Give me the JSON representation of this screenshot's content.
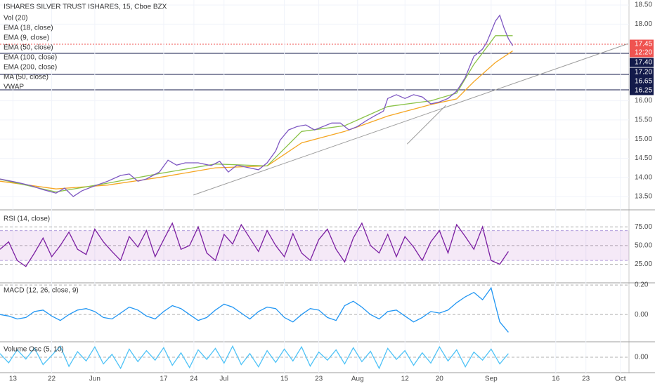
{
  "chart_data": [
    {
      "type": "line",
      "title": "ISHARES SILVER TRUST ISHARES, 15, Cboe BZX",
      "indicators": [
        "Vol (20)",
        "EMA (18, close)",
        "EMA (9, close)",
        "EMA (50, close)",
        "EMA (100, close)",
        "EMA (200, close)",
        "MA (50, close)",
        "VWAP"
      ],
      "xlim": [
        10,
        156
      ],
      "xticks": [
        {
          "value": 13,
          "label": "13"
        },
        {
          "value": 22,
          "label": "22"
        },
        {
          "value": 32,
          "label": "Jun"
        },
        {
          "value": 48,
          "label": "17"
        },
        {
          "value": 55,
          "label": "24"
        },
        {
          "value": 62,
          "label": "Jul"
        },
        {
          "value": 76,
          "label": "15"
        },
        {
          "value": 84,
          "label": "23"
        },
        {
          "value": 93,
          "label": "Aug"
        },
        {
          "value": 104,
          "label": "12"
        },
        {
          "value": 112,
          "label": "20"
        },
        {
          "value": 124,
          "label": "Sep"
        },
        {
          "value": 139,
          "label": "16"
        },
        {
          "value": 146,
          "label": "23"
        },
        {
          "value": 154,
          "label": "Oct"
        }
      ],
      "ylim": [
        13.19,
        18.63
      ],
      "yticks": [
        {
          "value": 18.5,
          "label": "18.50"
        },
        {
          "value": 18,
          "label": "18.00"
        },
        {
          "value": 16,
          "label": "16.00"
        },
        {
          "value": 15.5,
          "label": "15.50"
        },
        {
          "value": 15,
          "label": "15.00"
        },
        {
          "value": 14.5,
          "label": "14.50"
        },
        {
          "value": 14,
          "label": "14.00"
        },
        {
          "value": 13.5,
          "label": "13.50"
        }
      ],
      "price_labels": [
        {
          "text": "17.45",
          "color": "#ef5350"
        },
        {
          "text": "12:20",
          "color": "#ef5350"
        },
        {
          "text": "17.40",
          "color": "#131a4a"
        },
        {
          "text": "17.20",
          "color": "#131a4a"
        },
        {
          "text": "16.65",
          "color": "#131a4a"
        },
        {
          "text": "16.25",
          "color": "#131a4a"
        }
      ],
      "trendlines": [
        {
          "x": [
            54.9,
            155.8
          ],
          "values": [
            13.54,
            17.49
          ]
        },
        {
          "x": [
            104.5,
            113.5
          ],
          "values": [
            14.87,
            15.88
          ]
        }
      ],
      "series": [
        {
          "color": "#f5a623",
          "x": [
            10,
            23,
            35,
            47,
            60,
            72,
            80,
            90,
            100,
            110,
            116,
            120,
            125,
            129
          ],
          "values": [
            13.9,
            13.7,
            13.8,
            14.0,
            14.25,
            14.3,
            14.9,
            15.2,
            15.6,
            15.9,
            16.05,
            16.5,
            17.0,
            17.3
          ]
        },
        {
          "color": "#8bc34a",
          "x": [
            10,
            23,
            35,
            47,
            60,
            72,
            80,
            90,
            100,
            110,
            116,
            120,
            125,
            129
          ],
          "values": [
            13.95,
            13.62,
            13.85,
            14.1,
            14.35,
            14.3,
            15.2,
            15.35,
            15.85,
            16.0,
            16.2,
            16.95,
            17.7,
            17.7
          ]
        },
        {
          "color": "#7e57c2",
          "x": [
            10,
            14,
            17,
            20,
            23,
            25,
            27,
            29,
            32,
            35,
            38,
            40,
            42,
            44,
            47,
            49,
            51,
            53,
            56,
            59,
            61,
            63,
            65,
            67,
            70,
            72,
            74,
            75,
            77,
            79,
            81,
            83,
            85,
            87,
            89,
            91,
            93,
            95,
            97,
            99,
            100,
            102,
            104,
            106,
            108,
            110,
            112,
            114,
            116,
            118,
            119,
            120,
            121,
            122,
            123,
            124,
            125,
            126,
            127,
            128,
            129
          ],
          "values": [
            13.96,
            13.87,
            13.79,
            13.68,
            13.59,
            13.72,
            13.5,
            13.65,
            13.78,
            13.9,
            14.05,
            14.09,
            13.9,
            13.96,
            14.14,
            14.45,
            14.32,
            14.38,
            14.38,
            14.31,
            14.42,
            14.14,
            14.32,
            14.27,
            14.2,
            14.38,
            14.69,
            14.97,
            15.24,
            15.33,
            15.37,
            15.24,
            15.33,
            15.42,
            15.42,
            15.24,
            15.33,
            15.48,
            15.61,
            15.73,
            16.06,
            16.16,
            16.06,
            16.16,
            16.1,
            15.92,
            15.97,
            16.06,
            16.25,
            16.61,
            16.89,
            17.16,
            17.25,
            17.35,
            17.53,
            17.8,
            18.08,
            18.23,
            17.9,
            17.62,
            17.44
          ]
        }
      ]
    },
    {
      "type": "line",
      "title": "RSI (14, close)",
      "band": [
        30,
        70
      ],
      "ylim": [
        1,
        95
      ],
      "yticks": [
        {
          "value": 75,
          "label": "75.00"
        },
        {
          "value": 50,
          "label": "50.00"
        },
        {
          "value": 25,
          "label": "25.00"
        }
      ],
      "series": [
        {
          "color": "#7b1fa2",
          "x": [
            10,
            12,
            14,
            16,
            18,
            20,
            22,
            24,
            26,
            28,
            30,
            32,
            34,
            36,
            38,
            40,
            42,
            44,
            46,
            48,
            50,
            52,
            54,
            56,
            58,
            60,
            62,
            64,
            66,
            68,
            70,
            72,
            74,
            76,
            78,
            80,
            82,
            84,
            86,
            88,
            90,
            92,
            94,
            96,
            98,
            100,
            102,
            104,
            106,
            108,
            110,
            112,
            114,
            116,
            118,
            120,
            122,
            124,
            126,
            128
          ],
          "values": [
            45,
            55,
            30,
            22,
            40,
            60,
            35,
            50,
            68,
            45,
            38,
            72,
            55,
            42,
            30,
            62,
            48,
            70,
            35,
            58,
            80,
            45,
            50,
            75,
            40,
            30,
            65,
            52,
            78,
            60,
            42,
            70,
            50,
            35,
            66,
            40,
            30,
            58,
            72,
            45,
            28,
            60,
            80,
            50,
            40,
            65,
            35,
            62,
            48,
            30,
            55,
            70,
            40,
            78,
            62,
            45,
            75,
            30,
            25,
            42
          ]
        }
      ]
    },
    {
      "type": "line",
      "title": "MACD (12, 26, close, 9)",
      "ylim": [
        -0.18,
        0.21
      ],
      "yticks": [
        {
          "value": 0.2,
          "label": "0.20"
        },
        {
          "value": 0,
          "label": "0.00"
        }
      ],
      "series": [
        {
          "color": "#2196f3",
          "x": [
            10,
            12,
            14,
            16,
            18,
            20,
            22,
            24,
            26,
            28,
            30,
            32,
            34,
            36,
            38,
            40,
            42,
            44,
            46,
            48,
            50,
            52,
            54,
            56,
            58,
            60,
            62,
            64,
            66,
            68,
            70,
            72,
            74,
            76,
            78,
            80,
            82,
            84,
            86,
            88,
            90,
            92,
            94,
            96,
            98,
            100,
            102,
            104,
            106,
            108,
            110,
            112,
            114,
            116,
            118,
            120,
            122,
            124,
            126,
            128
          ],
          "values": [
            0,
            -0.01,
            -0.03,
            -0.02,
            0.02,
            0.03,
            -0.01,
            -0.04,
            0.0,
            0.03,
            0.04,
            0.02,
            -0.02,
            -0.03,
            0.01,
            0.05,
            0.03,
            -0.01,
            -0.03,
            0.02,
            0.06,
            0.04,
            0.0,
            -0.04,
            -0.02,
            0.03,
            0.07,
            0.05,
            0.01,
            -0.03,
            0.02,
            0.05,
            0.04,
            -0.02,
            -0.05,
            0.0,
            0.04,
            0.03,
            -0.02,
            -0.04,
            0.06,
            0.09,
            0.05,
            0.0,
            -0.03,
            0.02,
            0.03,
            -0.01,
            -0.05,
            -0.02,
            0.02,
            0.01,
            0.03,
            0.08,
            0.12,
            0.15,
            0.1,
            0.18,
            -0.05,
            -0.12
          ]
        }
      ]
    },
    {
      "type": "line",
      "title": "Volume Osc (5, 10)",
      "ylim": [
        -40,
        40
      ],
      "yticks": [
        {
          "value": 0,
          "label": "0.00"
        }
      ],
      "series": [
        {
          "color": "#4fc3f7",
          "x": [
            10,
            12,
            14,
            16,
            18,
            20,
            22,
            24,
            26,
            28,
            30,
            32,
            34,
            36,
            38,
            40,
            42,
            44,
            46,
            48,
            50,
            52,
            54,
            56,
            58,
            60,
            62,
            64,
            66,
            68,
            70,
            72,
            74,
            76,
            78,
            80,
            82,
            84,
            86,
            88,
            90,
            92,
            94,
            96,
            98,
            100,
            102,
            104,
            106,
            108,
            110,
            112,
            114,
            116,
            118,
            120,
            122,
            124,
            126,
            128
          ],
          "values": [
            10,
            -15,
            20,
            -5,
            25,
            -20,
            5,
            30,
            -25,
            15,
            -10,
            28,
            -18,
            8,
            -30,
            22,
            -12,
            18,
            -8,
            26,
            -22,
            12,
            -28,
            20,
            -6,
            24,
            -16,
            30,
            -20,
            10,
            -26,
            18,
            -14,
            22,
            -10,
            28,
            -24,
            14,
            -8,
            20,
            -18,
            26,
            -12,
            16,
            -30,
            24,
            -6,
            18,
            -22,
            12,
            -16,
            28,
            -10,
            20,
            -26,
            14,
            -8,
            22,
            -18,
            10
          ]
        }
      ]
    }
  ]
}
